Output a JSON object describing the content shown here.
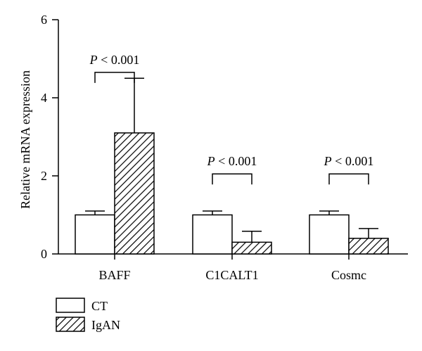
{
  "chart_data": {
    "type": "bar",
    "title": "",
    "xlabel": "",
    "ylabel": "Relative mRNA expression",
    "ylim": [
      0,
      6
    ],
    "yticks": [
      0,
      2,
      4,
      6
    ],
    "grid": false,
    "legend_position": "bottom-left",
    "categories": [
      "BAFF",
      "C1CALT1",
      "Cosmc"
    ],
    "series": [
      {
        "name": "CT",
        "fill": "white",
        "values": [
          1.0,
          1.0,
          1.0
        ],
        "error": [
          0.1,
          0.1,
          0.1
        ]
      },
      {
        "name": "IgAN",
        "fill": "hatched",
        "values": [
          3.1,
          0.3,
          0.4
        ],
        "error": [
          1.4,
          0.28,
          0.25
        ]
      }
    ],
    "annotations": [
      {
        "category": "BAFF",
        "text_italic": "P",
        "text_rest": " < 0.001"
      },
      {
        "category": "C1CALT1",
        "text_italic": "P",
        "text_rest": " < 0.001"
      },
      {
        "category": "Cosmc",
        "text_italic": "P",
        "text_rest": " < 0.001"
      }
    ]
  }
}
